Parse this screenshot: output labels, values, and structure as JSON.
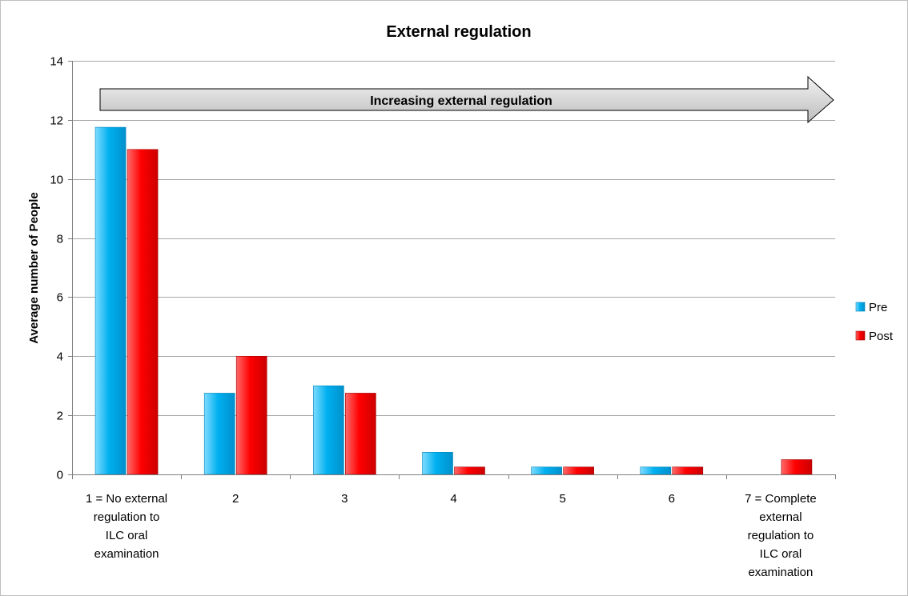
{
  "chart_data": {
    "type": "bar",
    "title": "External regulation",
    "xlabel": "",
    "ylabel": "Average number of People",
    "ylim": [
      0,
      14
    ],
    "yticks": [
      0,
      2,
      4,
      6,
      8,
      10,
      12,
      14
    ],
    "grid": true,
    "legend_position": "right",
    "categories": [
      [
        "1 = No external",
        "regulation to",
        "ILC oral",
        "examination"
      ],
      [
        "2"
      ],
      [
        "3"
      ],
      [
        "4"
      ],
      [
        "5"
      ],
      [
        "6"
      ],
      [
        "7 = Complete",
        "external",
        "regulation to",
        "ILC oral",
        "examination"
      ]
    ],
    "series": [
      {
        "name": "Pre",
        "color": "#00B0F0",
        "values": [
          11.75,
          2.75,
          3,
          0.75,
          0.25,
          0.25,
          0
        ]
      },
      {
        "name": "Post",
        "color": "#FF0000",
        "values": [
          11,
          4,
          2.75,
          0.25,
          0.25,
          0.25,
          0.5
        ]
      }
    ],
    "annotation": "Increasing external regulation"
  }
}
